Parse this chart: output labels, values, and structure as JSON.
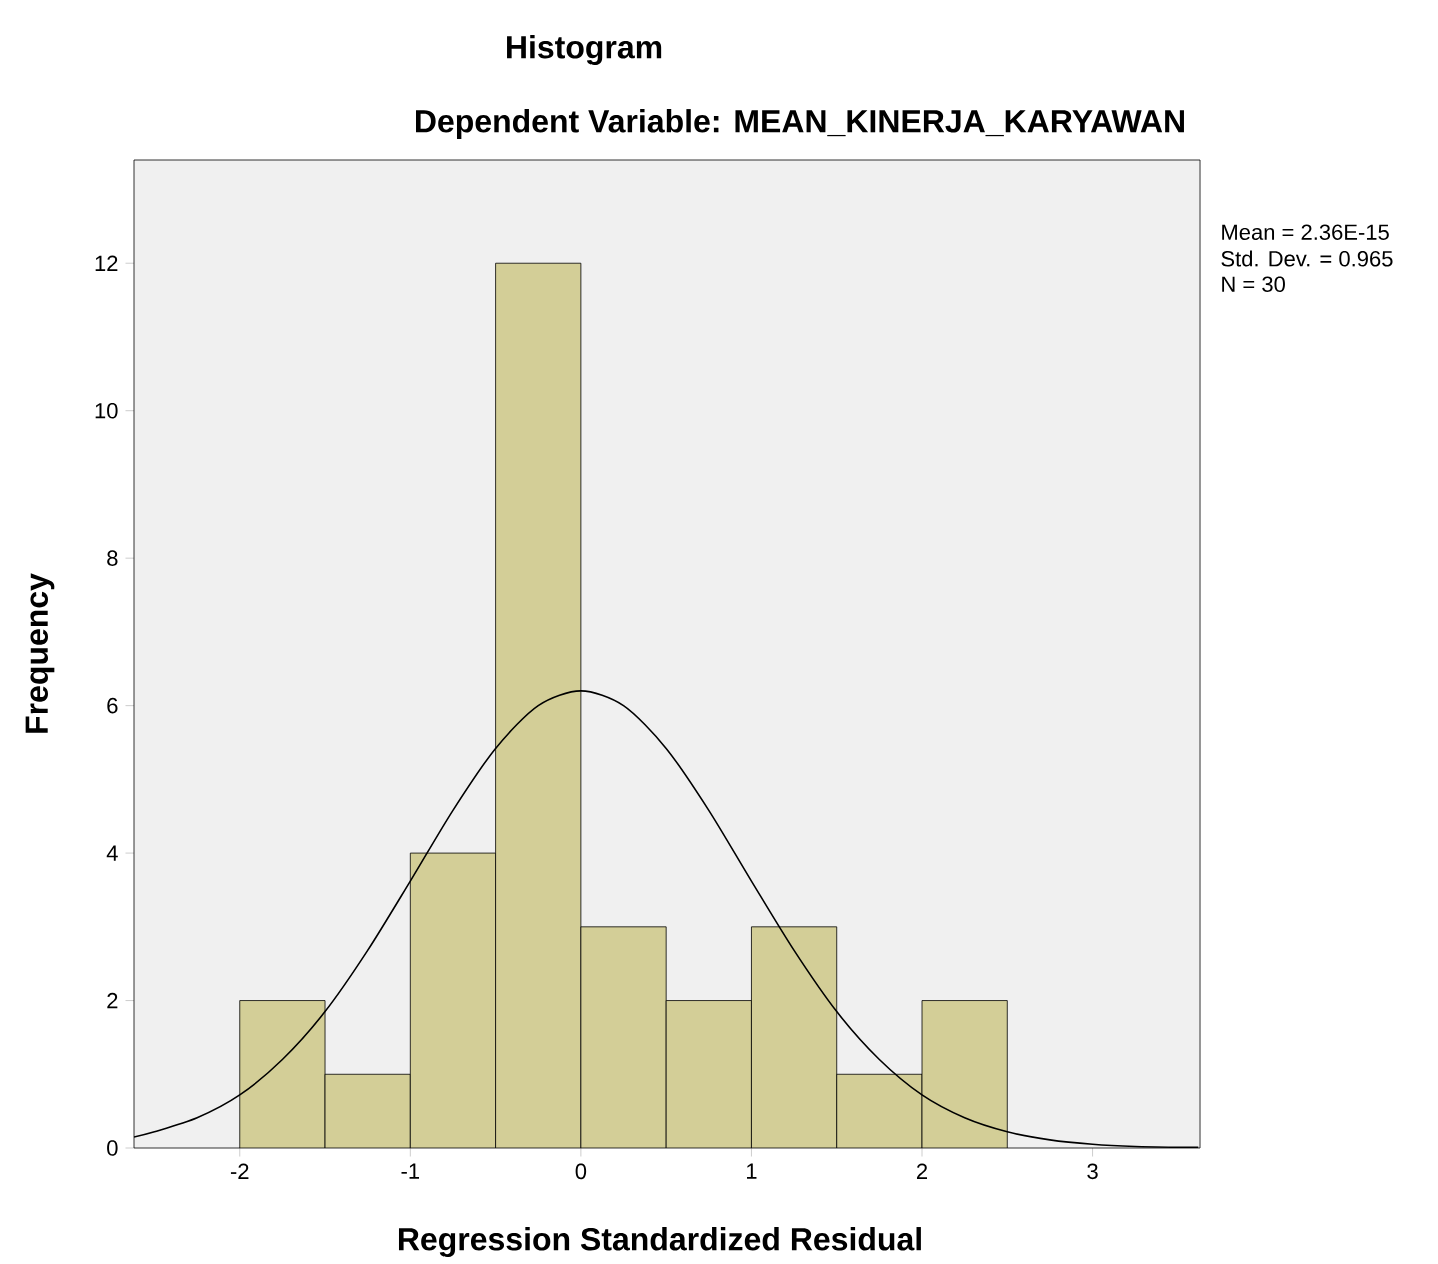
{
  "chart_data": {
    "type": "histogram",
    "title": "Histogram",
    "subtitle": "Dependent Variable: MEAN_KINERJA_KARYAWAN",
    "xlabel": "Regression Standardized Residual",
    "ylabel": "Frequency",
    "annotations": [
      "Mean = 2.36E-15",
      "Std. Dev. = 0.965",
      "N = 30"
    ],
    "bins": [
      -2,
      -1.5,
      -1,
      -0.5,
      0,
      0.5,
      1,
      1.5,
      2,
      2.5
    ],
    "values": [
      2,
      1,
      4,
      12,
      3,
      2,
      3,
      1,
      2
    ],
    "color": "#d3ce97",
    "series": [
      {
        "type": "line",
        "color": "#000000",
        "x": [
          -2.62,
          -2.5,
          -2.25,
          -2,
          -1.75,
          -1.5,
          -1.25,
          -1,
          -0.75,
          -0.5,
          -0.25,
          0,
          0.25,
          0.5,
          0.75,
          1,
          1.25,
          1.5,
          1.75,
          2,
          2.25,
          2.5,
          2.75,
          3,
          3.25,
          3.5,
          3.62
        ],
        "values": [
          0.15,
          0.22,
          0.41,
          0.72,
          1.2,
          1.85,
          2.68,
          3.62,
          4.58,
          5.42,
          6.0,
          6.2,
          6.0,
          5.42,
          4.58,
          3.62,
          2.68,
          1.85,
          1.2,
          0.72,
          0.41,
          0.22,
          0.11,
          0.05,
          0.02,
          0.01,
          0.01
        ]
      }
    ],
    "xlim": [
      -2.62,
      3.63
    ],
    "ylim": [
      0,
      13.4
    ],
    "xticks": [
      -2,
      -1,
      0,
      1,
      2,
      3
    ],
    "yticks": [
      0,
      2,
      4,
      6,
      8,
      10,
      12
    ],
    "grid": false,
    "marker": "none"
  }
}
